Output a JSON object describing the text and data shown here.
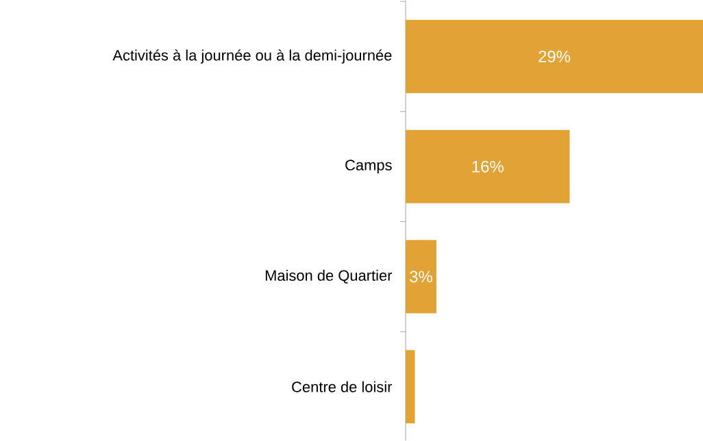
{
  "chart_data": {
    "type": "bar",
    "orientation": "horizontal",
    "categories": [
      "Activités à la journée ou à la demi-journée",
      "Camps",
      "Maison de Quartier",
      "Centre de loisir"
    ],
    "values": [
      29,
      16,
      3,
      0.9
    ],
    "value_labels": [
      "29%",
      "16%",
      "3%",
      null
    ],
    "color": "#e2a336",
    "xlim": [
      0,
      29
    ]
  }
}
